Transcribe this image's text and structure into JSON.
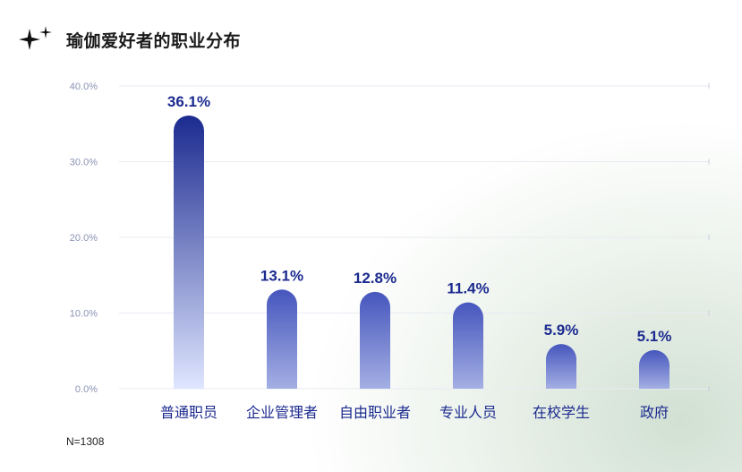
{
  "header": {
    "title": "瑜伽爱好者的职业分布",
    "icon": "sparkle-icon"
  },
  "note": "N=1308",
  "colors": {
    "bar_top": "#1b2a8f",
    "bar_bottom": "#dfe6ff",
    "short_bar_top": "#4656bd",
    "short_bar_bottom": "#a4afe3",
    "value_label": "#1b2a8f",
    "category_label": "#1b2a8f",
    "tick_label": "#8a93b3",
    "grid": "#e9ebf2"
  },
  "chart_data": {
    "type": "bar",
    "title": "瑜伽爱好者的职业分布",
    "categories": [
      "普通职员",
      "企业管理者",
      "自由职业者",
      "专业人员",
      "在校学生",
      "政府"
    ],
    "values": [
      36.1,
      13.1,
      12.8,
      11.4,
      5.9,
      5.1
    ],
    "value_labels": [
      "36.1%",
      "13.1%",
      "12.8%",
      "11.4%",
      "5.9%",
      "5.1%"
    ],
    "unit": "%",
    "ylim": [
      0,
      40
    ],
    "yticks": [
      0,
      10,
      20,
      30,
      40
    ],
    "ytick_labels": [
      "0.0%",
      "10.0%",
      "20.0%",
      "30.0%",
      "40.0%"
    ],
    "xlabel": "",
    "ylabel": "",
    "grid": true,
    "legend": "none"
  }
}
